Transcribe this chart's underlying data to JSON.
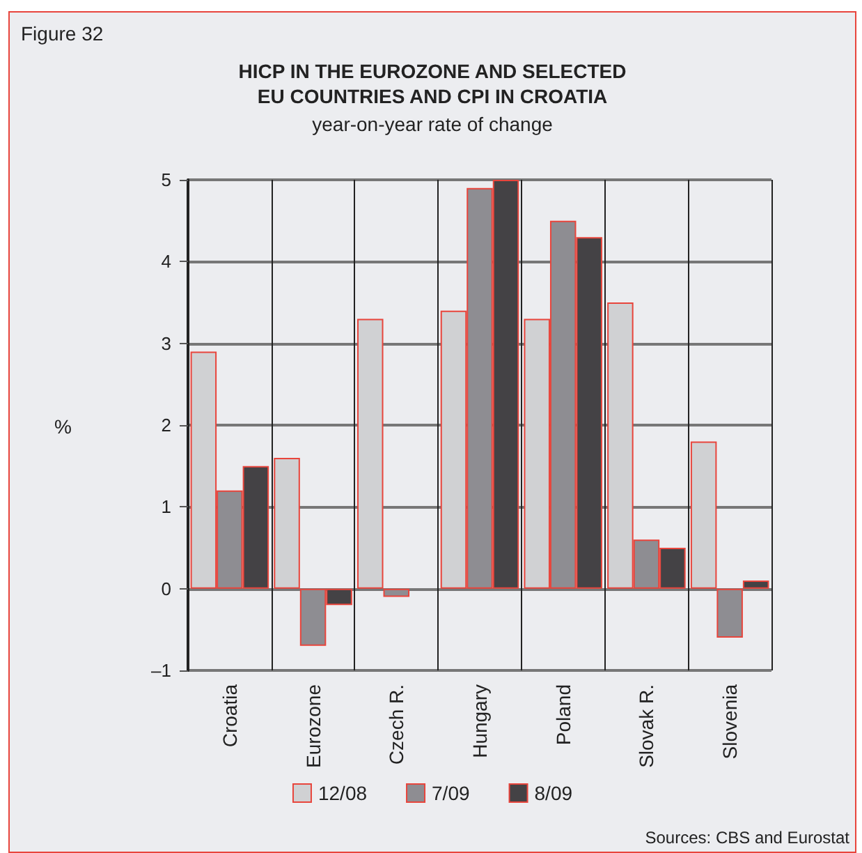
{
  "chart_data": {
    "type": "bar",
    "title": "HICP IN THE EUROZONE AND SELECTED\nEU COUNTRIES AND CPI IN CROATIA",
    "subtitle": "year-on-year rate of change",
    "ylabel": "%",
    "categories": [
      "Croatia",
      "Eurozone",
      "Czech R.",
      "Hungary",
      "Poland",
      "Slovak R.",
      "Slovenia"
    ],
    "series": [
      {
        "name": "12/08",
        "color": "#d0d1d3",
        "values": [
          2.9,
          1.6,
          3.3,
          3.4,
          3.3,
          3.5,
          1.8
        ]
      },
      {
        "name": "7/09",
        "color": "#8e8d92",
        "values": [
          1.2,
          -0.7,
          -0.1,
          4.9,
          4.5,
          0.6,
          -0.6
        ]
      },
      {
        "name": "8/09",
        "color": "#444245",
        "values": [
          1.5,
          -0.2,
          null,
          5.0,
          4.3,
          0.5,
          0.1
        ]
      }
    ],
    "ylim": [
      -1,
      5
    ],
    "yticks": [
      {
        "value": -1,
        "label": "–1"
      },
      0,
      1,
      2,
      3,
      4,
      5
    ],
    "grid": true,
    "legend": "bottom",
    "annotations": [
      "Figure 32",
      "Sources: CBS and Eurostat"
    ]
  }
}
